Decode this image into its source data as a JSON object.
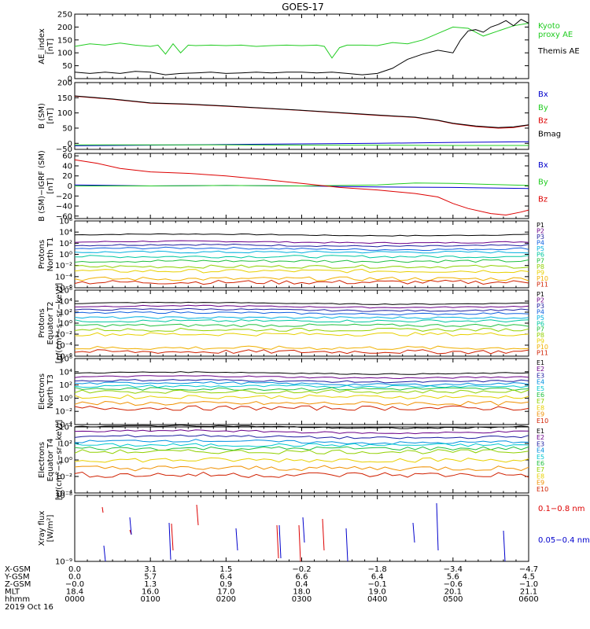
{
  "title": "GOES-17",
  "date_label": "2019 Oct 16",
  "colors": {
    "black": "#000000",
    "red": "#dd0000",
    "green": "#22cc22",
    "blue": "#0000cc",
    "proton_levels": [
      "#000000",
      "#6a0088",
      "#2020a0",
      "#1060e0",
      "#00b0e0",
      "#00c8a0",
      "#20c040",
      "#90d000",
      "#e8d000",
      "#f0b000",
      "#d02000"
    ],
    "electron_levels": [
      "#000000",
      "#6a0088",
      "#1c1ca0",
      "#0090e0",
      "#00c8d0",
      "#20c040",
      "#90d000",
      "#e8d000",
      "#f09000",
      "#d02000"
    ]
  },
  "chart_data": [
    {
      "type": "line",
      "ylabel": [
        "AE_index",
        "[nT]"
      ],
      "ylim": [
        0,
        250
      ],
      "yticks": [
        "0",
        "50",
        "100",
        "150",
        "200",
        "250"
      ],
      "xlim": [
        0,
        6
      ],
      "series": [
        {
          "name": "Kyoto proxy AE",
          "name_lines": [
            "Kyoto",
            "proxy AE"
          ],
          "color": "green",
          "x": [
            0,
            0.2,
            0.4,
            0.6,
            0.8,
            1.0,
            1.1,
            1.2,
            1.3,
            1.4,
            1.5,
            1.6,
            1.8,
            2.0,
            2.2,
            2.4,
            2.6,
            2.8,
            3.0,
            3.2,
            3.3,
            3.4,
            3.5,
            3.6,
            3.8,
            4.0,
            4.2,
            4.4,
            4.6,
            4.8,
            5.0,
            5.2,
            5.4,
            5.6,
            5.8,
            6.0
          ],
          "y": [
            125,
            135,
            130,
            138,
            130,
            125,
            130,
            95,
            135,
            100,
            130,
            128,
            130,
            128,
            130,
            125,
            128,
            130,
            128,
            130,
            125,
            80,
            120,
            130,
            130,
            128,
            140,
            135,
            150,
            175,
            200,
            195,
            165,
            185,
            205,
            215
          ]
        },
        {
          "name": "Themis AE",
          "name_lines": [
            "Themis AE"
          ],
          "color": "black",
          "x": [
            0,
            0.2,
            0.4,
            0.6,
            0.8,
            1.0,
            1.2,
            1.4,
            1.6,
            1.8,
            2.0,
            2.2,
            2.4,
            2.6,
            2.8,
            3.0,
            3.2,
            3.4,
            3.6,
            3.8,
            4.0,
            4.2,
            4.4,
            4.6,
            4.8,
            5.0,
            5.1,
            5.2,
            5.3,
            5.4,
            5.5,
            5.6,
            5.7,
            5.8,
            5.9,
            6.0
          ],
          "y": [
            25,
            20,
            25,
            20,
            28,
            25,
            15,
            20,
            22,
            25,
            20,
            22,
            25,
            22,
            25,
            25,
            22,
            25,
            20,
            15,
            20,
            40,
            75,
            95,
            110,
            100,
            150,
            185,
            190,
            180,
            200,
            210,
            225,
            205,
            230,
            215
          ]
        }
      ]
    },
    {
      "type": "line",
      "ylabel": [
        "B (SM)",
        "[nT]"
      ],
      "ylim": [
        -20,
        200
      ],
      "yticks": [
        "0",
        "50",
        "100",
        "150",
        "200"
      ],
      "extra_ticks": [
        "−50"
      ],
      "xlim": [
        0,
        6
      ],
      "series": [
        {
          "name": "Bx",
          "color": "blue",
          "x": [
            0,
            1,
            2,
            3,
            4,
            5,
            6
          ],
          "y": [
            -8,
            -6,
            -4,
            -2,
            0,
            3,
            5
          ]
        },
        {
          "name": "By",
          "color": "green",
          "x": [
            0,
            1,
            2,
            3,
            4,
            5,
            6
          ],
          "y": [
            -5,
            -5,
            -5,
            -6,
            -6,
            -7,
            -7
          ]
        },
        {
          "name": "Bz",
          "color": "red",
          "x": [
            0,
            0.5,
            1,
            1.5,
            2,
            2.5,
            3,
            3.5,
            4,
            4.5,
            4.8,
            5.0,
            5.3,
            5.6,
            5.8,
            6.0
          ],
          "y": [
            155,
            145,
            132,
            128,
            122,
            115,
            108,
            100,
            92,
            85,
            75,
            65,
            55,
            50,
            52,
            60
          ]
        },
        {
          "name": "Bmag",
          "color": "black",
          "x": [
            0,
            0.5,
            1,
            1.5,
            2,
            2.5,
            3,
            3.5,
            4,
            4.5,
            4.8,
            5.0,
            5.3,
            5.6,
            5.8,
            6.0
          ],
          "y": [
            156,
            146,
            133,
            129,
            123,
            116,
            109,
            101,
            93,
            86,
            76,
            66,
            57,
            52,
            54,
            61
          ]
        }
      ]
    },
    {
      "type": "line",
      "ylabel": [
        "B (SM)−IGRF (SM)",
        "[nT]"
      ],
      "ylim": [
        -65,
        65
      ],
      "yticks": [
        "−60",
        "−40",
        "−20",
        "0",
        "20",
        "40",
        "60"
      ],
      "xlim": [
        0,
        6
      ],
      "series": [
        {
          "name": "Bx",
          "color": "blue",
          "x": [
            0,
            1,
            2,
            3,
            4,
            5,
            6
          ],
          "y": [
            2,
            0,
            1,
            0,
            -2,
            -3,
            -5
          ]
        },
        {
          "name": "By",
          "color": "green",
          "x": [
            0,
            1,
            2,
            3,
            4,
            4.5,
            5,
            5.5,
            6
          ],
          "y": [
            0,
            0,
            1,
            0,
            2,
            6,
            5,
            3,
            1
          ]
        },
        {
          "name": "Bz",
          "color": "red",
          "x": [
            0,
            0.3,
            0.6,
            1,
            1.5,
            2,
            2.5,
            3,
            3.5,
            4,
            4.5,
            4.8,
            5.0,
            5.2,
            5.5,
            5.7,
            5.9,
            6.0
          ],
          "y": [
            52,
            45,
            35,
            28,
            25,
            20,
            13,
            5,
            -3,
            -8,
            -15,
            -22,
            -35,
            -45,
            -55,
            -58,
            -52,
            -48
          ]
        }
      ]
    },
    {
      "type": "line",
      "log": true,
      "ylabel": [
        "Protons",
        "North T1"
      ],
      "yticks": [
        "10⁶",
        "10⁴",
        "10²",
        "10⁰",
        "10⁻²",
        "10⁻⁴",
        "10⁻⁶"
      ],
      "levels": [
        3.5,
        2.2,
        1.6,
        1.0,
        0.4,
        -0.4,
        -1.2,
        -2.2,
        -3.0,
        -4.4,
        -5.0
      ],
      "names": [
        "P1",
        "P2",
        "P3",
        "P4",
        "P5",
        "P6",
        "P7",
        "P8",
        "P9",
        "P10",
        "P11"
      ]
    },
    {
      "type": "line",
      "log": true,
      "ylabel": [
        "Protons",
        "Equator T2",
        "[p/(cm²−s−sr−keV)]"
      ],
      "yticks": [
        "10⁶",
        "10⁴",
        "10²",
        "10⁰",
        "10⁻²",
        "10⁻⁴",
        "10⁻⁶"
      ],
      "levels": [
        3.6,
        3.0,
        2.4,
        1.8,
        1.0,
        0.4,
        -0.4,
        -1.2,
        -2.0,
        -4.5,
        -5.2
      ],
      "names": [
        "P1",
        "P2",
        "P3",
        "P4",
        "P5",
        "P6",
        "P7",
        "P8",
        "P9",
        "P10",
        "P11"
      ]
    },
    {
      "type": "line",
      "log": true,
      "ylabel": [
        "Electrons",
        "North T3"
      ],
      "yticks": [
        "10⁶",
        "10⁴",
        "10²",
        "10⁰",
        "10⁻²",
        "10⁻⁴"
      ],
      "levels": [
        3.8,
        3.2,
        2.6,
        2.2,
        1.8,
        1.4,
        1.0,
        0.2,
        -0.8,
        -1.5
      ],
      "names": [
        "E1",
        "E2",
        "E3",
        "E4",
        "E5",
        "E6",
        "E7",
        "E8",
        "E9",
        "E10"
      ]
    },
    {
      "type": "line",
      "log": true,
      "ylabel": [
        "Electrons",
        "Equator T4",
        "[e/(cm²−s−sr−keV)]"
      ],
      "yticks": [
        "10⁴",
        "10²",
        "10⁰",
        "10⁻²",
        "10⁻⁴"
      ],
      "levels": [
        4.0,
        3.4,
        2.8,
        2.2,
        1.8,
        1.4,
        1.0,
        0.0,
        -1.0,
        -1.8
      ],
      "names": [
        "E1",
        "E2",
        "E3",
        "E4",
        "E5",
        "E6",
        "E7",
        "E8",
        "E9",
        "E10"
      ]
    },
    {
      "type": "line",
      "log": true,
      "ylabel": [
        "Xray flux",
        "[W/m²]"
      ],
      "yticks": [
        "10⁻⁸",
        "10⁻⁹"
      ],
      "series": [
        {
          "name": "0.1−0.8 nm",
          "color": "red"
        },
        {
          "name": "0.05−0.4 nm",
          "color": "blue"
        }
      ]
    }
  ],
  "axis_table": {
    "labels": [
      "X-GSM",
      "Y-GSM",
      "Z-GSM",
      "MLT",
      "hhmm"
    ],
    "columns": [
      [
        "0.0",
        "0.0",
        "−0.0",
        "18.4",
        "0000"
      ],
      [
        "3.1",
        "5.7",
        "1.3",
        "16.0",
        "0100"
      ],
      [
        "1.5",
        "6.4",
        "0.9",
        "17.0",
        "0200"
      ],
      [
        "−0.2",
        "6.6",
        "0.4",
        "18.0",
        "0300"
      ],
      [
        "−1.8",
        "6.4",
        "−0.1",
        "19.0",
        "0400"
      ],
      [
        "−3.4",
        "5.6",
        "−0.6",
        "20.1",
        "0500"
      ],
      [
        "−4.7",
        "4.5",
        "−1.0",
        "21.1",
        "0600"
      ]
    ]
  }
}
